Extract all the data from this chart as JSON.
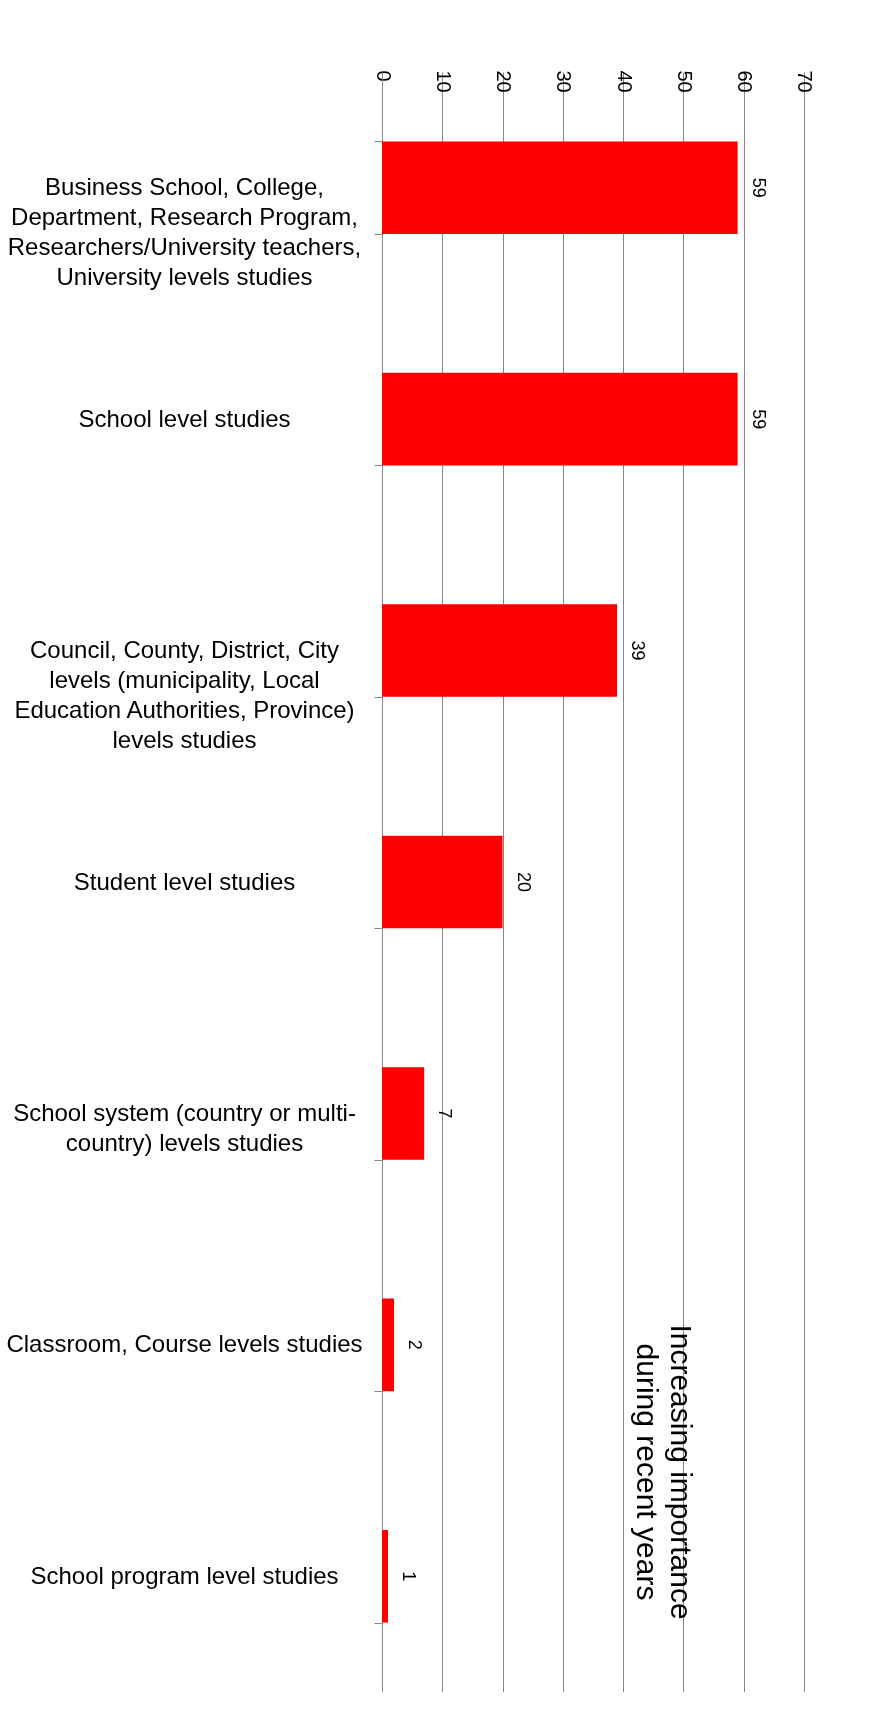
{
  "chart_data": {
    "type": "bar",
    "orientation": "horizontal",
    "categories": [
      "Business School, College, Department, Research Program, Researchers/University teachers, University levels studies",
      "School level studies",
      "Council, County, District, City levels (municipality, Local Education Authorities, Province) levels studies",
      "Student level studies",
      "School system (country or multi-country) levels studies",
      "Classroom, Course levels studies",
      "School program level studies"
    ],
    "values": [
      59,
      59,
      39,
      20,
      7,
      2,
      1
    ],
    "color": "#ff0000",
    "xlim": [
      0,
      73
    ],
    "xticks": [
      0,
      10,
      20,
      30,
      40,
      50,
      60,
      70
    ],
    "grid": "x",
    "data_labels": true,
    "annotations": [
      "Increasing importance during recent years"
    ]
  }
}
